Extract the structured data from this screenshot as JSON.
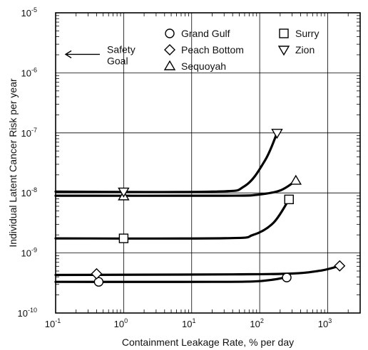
{
  "chart_data": {
    "type": "line",
    "title": "",
    "xlabel": "Containment Leakage Rate, % per day",
    "ylabel": "Individual Latent Cancer Risk per year",
    "x_scale": "log",
    "y_scale": "log",
    "xlim": [
      0.1,
      3000
    ],
    "ylim": [
      1e-10,
      1e-05
    ],
    "grid": true,
    "x_ticks": [
      {
        "value": 0.1,
        "base": "10",
        "exp": "-1"
      },
      {
        "value": 1,
        "base": "10",
        "exp": "0"
      },
      {
        "value": 10,
        "base": "10",
        "exp": "1"
      },
      {
        "value": 100,
        "base": "10",
        "exp": "2"
      },
      {
        "value": 1000,
        "base": "10",
        "exp": "3"
      }
    ],
    "y_ticks": [
      {
        "value": 1e-10,
        "base": "10",
        "exp": "-10"
      },
      {
        "value": 1e-09,
        "base": "10",
        "exp": "-9"
      },
      {
        "value": 1e-08,
        "base": "10",
        "exp": "-8"
      },
      {
        "value": 1e-07,
        "base": "10",
        "exp": "-7"
      },
      {
        "value": 1e-06,
        "base": "10",
        "exp": "-6"
      },
      {
        "value": 1e-05,
        "base": "10",
        "exp": "-5"
      }
    ],
    "annotation": {
      "line1": "Safety",
      "line2": "Goal",
      "arrow": "left",
      "value": 1e-06
    },
    "legend_position": "top-right",
    "series": [
      {
        "name": "Grand Gulf",
        "marker": "circle",
        "points": [
          [
            0.43,
            3.3e-10
          ],
          [
            250,
            3.9e-10
          ]
        ],
        "curve": [
          [
            0.1,
            3.3e-10
          ],
          [
            20,
            3.3e-10
          ],
          [
            80,
            3.35e-10
          ],
          [
            160,
            3.6e-10
          ],
          [
            260,
            4e-10
          ]
        ]
      },
      {
        "name": "Peach Bottom",
        "marker": "diamond",
        "points": [
          [
            0.4,
            4.5e-10
          ],
          [
            1500,
            6.1e-10
          ]
        ],
        "curve": [
          [
            0.1,
            4.3e-10
          ],
          [
            40,
            4.4e-10
          ],
          [
            300,
            4.55e-10
          ],
          [
            800,
            5.1e-10
          ],
          [
            1500,
            6.1e-10
          ]
        ]
      },
      {
        "name": "Sequoyah",
        "marker": "triangle-up",
        "points": [
          [
            1,
            8.8e-09
          ],
          [
            340,
            1.6e-08
          ]
        ],
        "curve": [
          [
            0.1,
            9e-09
          ],
          [
            30,
            9e-09
          ],
          [
            90,
            9.3e-09
          ],
          [
            200,
            1.1e-08
          ],
          [
            340,
            1.6e-08
          ]
        ]
      },
      {
        "name": "Surry",
        "marker": "square",
        "points": [
          [
            1,
            1.75e-09
          ],
          [
            270,
            7.8e-09
          ]
        ],
        "curve": [
          [
            0.1,
            1.75e-09
          ],
          [
            30,
            1.76e-09
          ],
          [
            80,
            2e-09
          ],
          [
            160,
            3.2e-09
          ],
          [
            270,
            7.8e-09
          ]
        ]
      },
      {
        "name": "Zion",
        "marker": "triangle-down",
        "points": [
          [
            1,
            1.05e-08
          ],
          [
            180,
            1e-07
          ]
        ],
        "curve": [
          [
            0.1,
            1.05e-08
          ],
          [
            20,
            1.05e-08
          ],
          [
            60,
            1.3e-08
          ],
          [
            120,
            3.5e-08
          ],
          [
            180,
            1e-07
          ]
        ]
      }
    ]
  }
}
